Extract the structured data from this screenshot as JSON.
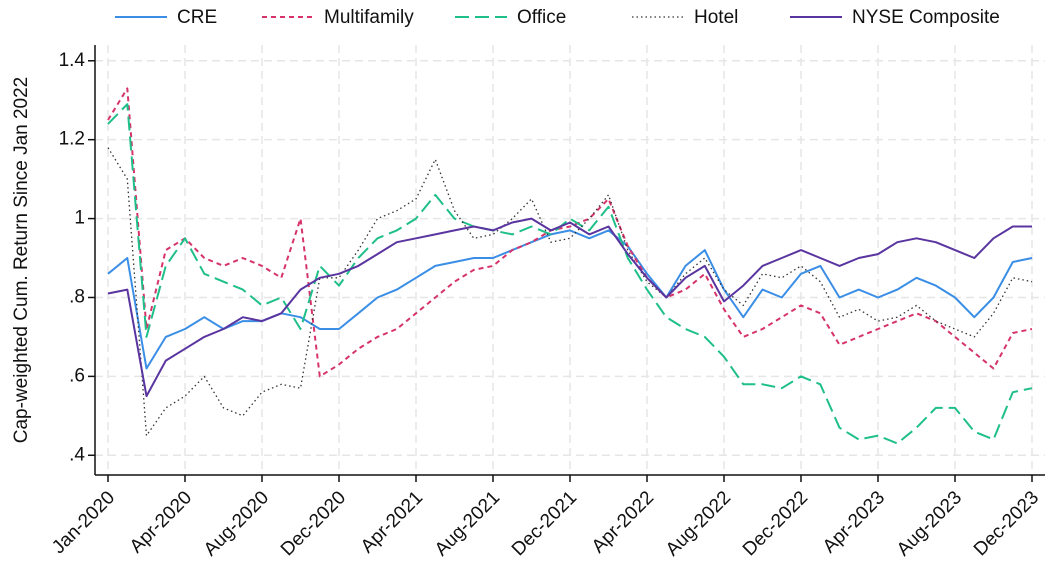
{
  "chart_data": {
    "type": "line",
    "ylabel": "Cap-weighted Cum. Return Since Jan 2022",
    "x": [
      "2020-01",
      "2020-02",
      "2020-03",
      "2020-04",
      "2020-05",
      "2020-06",
      "2020-07",
      "2020-08",
      "2020-09",
      "2020-10",
      "2020-11",
      "2020-12",
      "2021-01",
      "2021-02",
      "2021-03",
      "2021-04",
      "2021-05",
      "2021-06",
      "2021-07",
      "2021-08",
      "2021-09",
      "2021-10",
      "2021-11",
      "2021-12",
      "2022-01",
      "2022-02",
      "2022-03",
      "2022-04",
      "2022-05",
      "2022-06",
      "2022-07",
      "2022-08",
      "2022-09",
      "2022-10",
      "2022-11",
      "2022-12",
      "2023-01",
      "2023-02",
      "2023-03",
      "2023-04",
      "2023-05",
      "2023-06",
      "2023-07",
      "2023-08",
      "2023-09",
      "2023-10",
      "2023-11",
      "2023-12",
      "2024-01"
    ],
    "xticks": [
      {
        "value": "2020-01",
        "label": "Jan-2020"
      },
      {
        "value": "2020-05",
        "label": "Apr-2020"
      },
      {
        "value": "2020-09",
        "label": "Aug-2020"
      },
      {
        "value": "2021-01",
        "label": "Dec-2020"
      },
      {
        "value": "2021-05",
        "label": "Apr-2021"
      },
      {
        "value": "2021-09",
        "label": "Aug-2021"
      },
      {
        "value": "2022-01",
        "label": "Dec-2021"
      },
      {
        "value": "2022-05",
        "label": "Apr-2022"
      },
      {
        "value": "2022-09",
        "label": "Aug-2022"
      },
      {
        "value": "2023-01",
        "label": "Dec-2022"
      },
      {
        "value": "2023-05",
        "label": "Apr-2023"
      },
      {
        "value": "2023-09",
        "label": "Aug-2023"
      },
      {
        "value": "2024-01",
        "label": "Dec-2023"
      }
    ],
    "ylim": [
      0.35,
      1.44
    ],
    "yticks": [
      {
        "value": 0.4,
        "label": ".4"
      },
      {
        "value": 0.6,
        "label": ".6"
      },
      {
        "value": 0.8,
        "label": ".8"
      },
      1,
      1.2,
      1.4
    ],
    "grid": true,
    "series": [
      {
        "name": "CRE",
        "color": "#3a8ee6",
        "dash": "solid",
        "values": [
          0.86,
          0.9,
          0.62,
          0.7,
          0.72,
          0.75,
          0.72,
          0.74,
          0.74,
          0.76,
          0.75,
          0.72,
          0.72,
          0.76,
          0.8,
          0.82,
          0.85,
          0.88,
          0.89,
          0.9,
          0.9,
          0.92,
          0.94,
          0.96,
          0.97,
          0.95,
          0.97,
          0.93,
          0.86,
          0.8,
          0.88,
          0.92,
          0.82,
          0.75,
          0.82,
          0.8,
          0.86,
          0.88,
          0.8,
          0.82,
          0.8,
          0.82,
          0.85,
          0.83,
          0.8,
          0.75,
          0.8,
          0.89,
          0.9
        ]
      },
      {
        "name": "Multifamily",
        "color": "#d6336c",
        "dash": "short",
        "values": [
          1.25,
          1.33,
          0.72,
          0.92,
          0.95,
          0.9,
          0.88,
          0.9,
          0.88,
          0.85,
          1.0,
          0.6,
          0.63,
          0.67,
          0.7,
          0.72,
          0.76,
          0.8,
          0.84,
          0.87,
          0.88,
          0.92,
          0.94,
          0.97,
          0.98,
          1.0,
          1.05,
          0.93,
          0.85,
          0.8,
          0.82,
          0.86,
          0.77,
          0.7,
          0.72,
          0.75,
          0.78,
          0.76,
          0.68,
          0.7,
          0.72,
          0.74,
          0.76,
          0.74,
          0.7,
          0.66,
          0.62,
          0.71,
          0.72
        ]
      },
      {
        "name": "Office",
        "color": "#1fbf8a",
        "dash": "long",
        "values": [
          1.24,
          1.29,
          0.7,
          0.88,
          0.95,
          0.86,
          0.84,
          0.82,
          0.78,
          0.8,
          0.72,
          0.88,
          0.83,
          0.9,
          0.95,
          0.97,
          1.0,
          1.06,
          1.0,
          0.98,
          0.97,
          0.96,
          0.98,
          0.96,
          1.0,
          0.97,
          1.03,
          0.9,
          0.82,
          0.75,
          0.72,
          0.7,
          0.65,
          0.58,
          0.58,
          0.57,
          0.6,
          0.58,
          0.47,
          0.44,
          0.45,
          0.43,
          0.47,
          0.52,
          0.52,
          0.46,
          0.44,
          0.56,
          0.57
        ]
      },
      {
        "name": "Hotel",
        "color": "#333333",
        "dash": "dot",
        "values": [
          1.18,
          1.1,
          0.45,
          0.52,
          0.55,
          0.6,
          0.52,
          0.5,
          0.56,
          0.58,
          0.57,
          0.85,
          0.85,
          0.92,
          1.0,
          1.02,
          1.05,
          1.15,
          1.02,
          0.95,
          0.96,
          1.0,
          1.05,
          0.94,
          0.95,
          1.0,
          1.06,
          0.92,
          0.84,
          0.8,
          0.86,
          0.9,
          0.82,
          0.78,
          0.86,
          0.85,
          0.88,
          0.84,
          0.75,
          0.77,
          0.74,
          0.75,
          0.78,
          0.74,
          0.72,
          0.7,
          0.76,
          0.85,
          0.84
        ]
      },
      {
        "name": "NYSE Composite",
        "color": "#5a35a0",
        "dash": "solid",
        "values": [
          0.81,
          0.82,
          0.55,
          0.64,
          0.67,
          0.7,
          0.72,
          0.75,
          0.74,
          0.76,
          0.82,
          0.85,
          0.86,
          0.88,
          0.91,
          0.94,
          0.95,
          0.96,
          0.97,
          0.98,
          0.97,
          0.99,
          1.0,
          0.97,
          0.99,
          0.96,
          0.98,
          0.91,
          0.85,
          0.8,
          0.85,
          0.88,
          0.79,
          0.83,
          0.88,
          0.9,
          0.92,
          0.9,
          0.88,
          0.9,
          0.91,
          0.94,
          0.95,
          0.94,
          0.92,
          0.9,
          0.95,
          0.98,
          0.98
        ]
      }
    ]
  }
}
